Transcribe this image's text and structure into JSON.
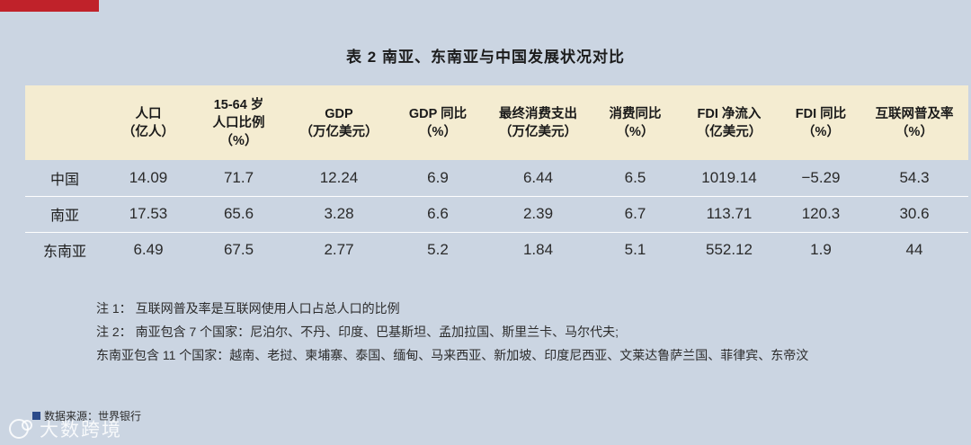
{
  "title": "表 2 南亚、东南亚与中国发展状况对比",
  "table": {
    "headers": [
      {
        "line1": "",
        "line2": ""
      },
      {
        "line1": "人口",
        "line2": "（亿人）"
      },
      {
        "line1": "15-64 岁",
        "line2": "人口比例",
        "line3": "（%）"
      },
      {
        "line1": "GDP",
        "line2": "（万亿美元）"
      },
      {
        "line1": "GDP 同比",
        "line2": "（%）"
      },
      {
        "line1": "最终消费支出",
        "line2": "（万亿美元）"
      },
      {
        "line1": "消费同比",
        "line2": "（%）"
      },
      {
        "line1": "FDI 净流入",
        "line2": "（亿美元）"
      },
      {
        "line1": "FDI 同比",
        "line2": "（%）"
      },
      {
        "line1": "互联网普及率",
        "line2": "（%）"
      }
    ],
    "rows": [
      [
        "中国",
        "14.09",
        "71.7",
        "12.24",
        "6.9",
        "6.44",
        "6.5",
        "1019.14",
        "−5.29",
        "54.3"
      ],
      [
        "南亚",
        "17.53",
        "65.6",
        "3.28",
        "6.6",
        "2.39",
        "6.7",
        "113.71",
        "120.3",
        "30.6"
      ],
      [
        "东南亚",
        "6.49",
        "67.5",
        "2.77",
        "5.2",
        "1.84",
        "5.1",
        "552.12",
        "1.9",
        "44"
      ]
    ]
  },
  "notes": [
    "注 1：  互联网普及率是互联网使用人口占总人口的比例",
    "注 2：  南亚包含 7 个国家：尼泊尔、不丹、印度、巴基斯坦、孟加拉国、斯里兰卡、马尔代夫;",
    "东南亚包含 11 个国家：越南、老挝、柬埔寨、泰国、缅甸、马来西亚、新加坡、印度尼西亚、文莱达鲁萨兰国、菲律宾、东帝汶"
  ],
  "source": "数据来源：世界银行",
  "watermark": "大数跨境",
  "colors": {
    "background": "#cbd5e2",
    "header_bg": "#f4ecd1",
    "accent_red": "#c0222a"
  }
}
